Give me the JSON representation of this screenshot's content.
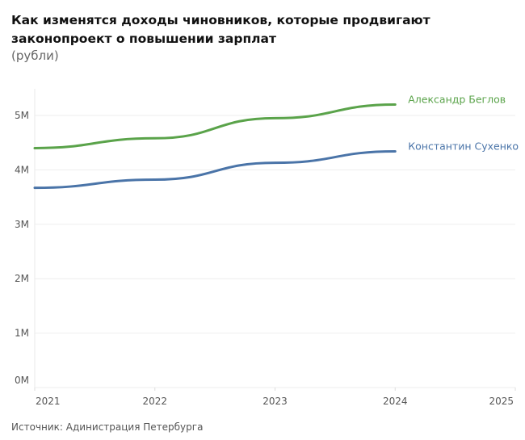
{
  "chart_data": {
    "type": "line",
    "title": "Как изменятся доходы чиновников, которые продвигают законопроект о повышении зарплат",
    "subtitle": "(рубли)",
    "source": "Источник: Адинистрация Петербурга",
    "x_ticks": [
      "2021",
      "2022",
      "2023",
      "2024",
      "2025"
    ],
    "xlim": [
      2021,
      2025
    ],
    "y_ticks": [
      {
        "v": 0,
        "label": "0M"
      },
      {
        "v": 1,
        "label": "1M"
      },
      {
        "v": 2,
        "label": "2M"
      },
      {
        "v": 3,
        "label": "3M"
      },
      {
        "v": 4,
        "label": "4M"
      },
      {
        "v": 5,
        "label": "5M"
      }
    ],
    "ylim": [
      0,
      5.5
    ],
    "ylabel": "",
    "grid": true,
    "series": [
      {
        "name": "Александр Беглов",
        "color": "#5aa34a",
        "x": [
          2021,
          2022,
          2023,
          2024
        ],
        "values": [
          4.4,
          4.58,
          4.95,
          5.2
        ]
      },
      {
        "name": "Константин Сухенко",
        "color": "#4a74a8",
        "x": [
          2021,
          2022,
          2023,
          2024
        ],
        "values": [
          3.67,
          3.82,
          4.13,
          4.34
        ]
      }
    ]
  }
}
